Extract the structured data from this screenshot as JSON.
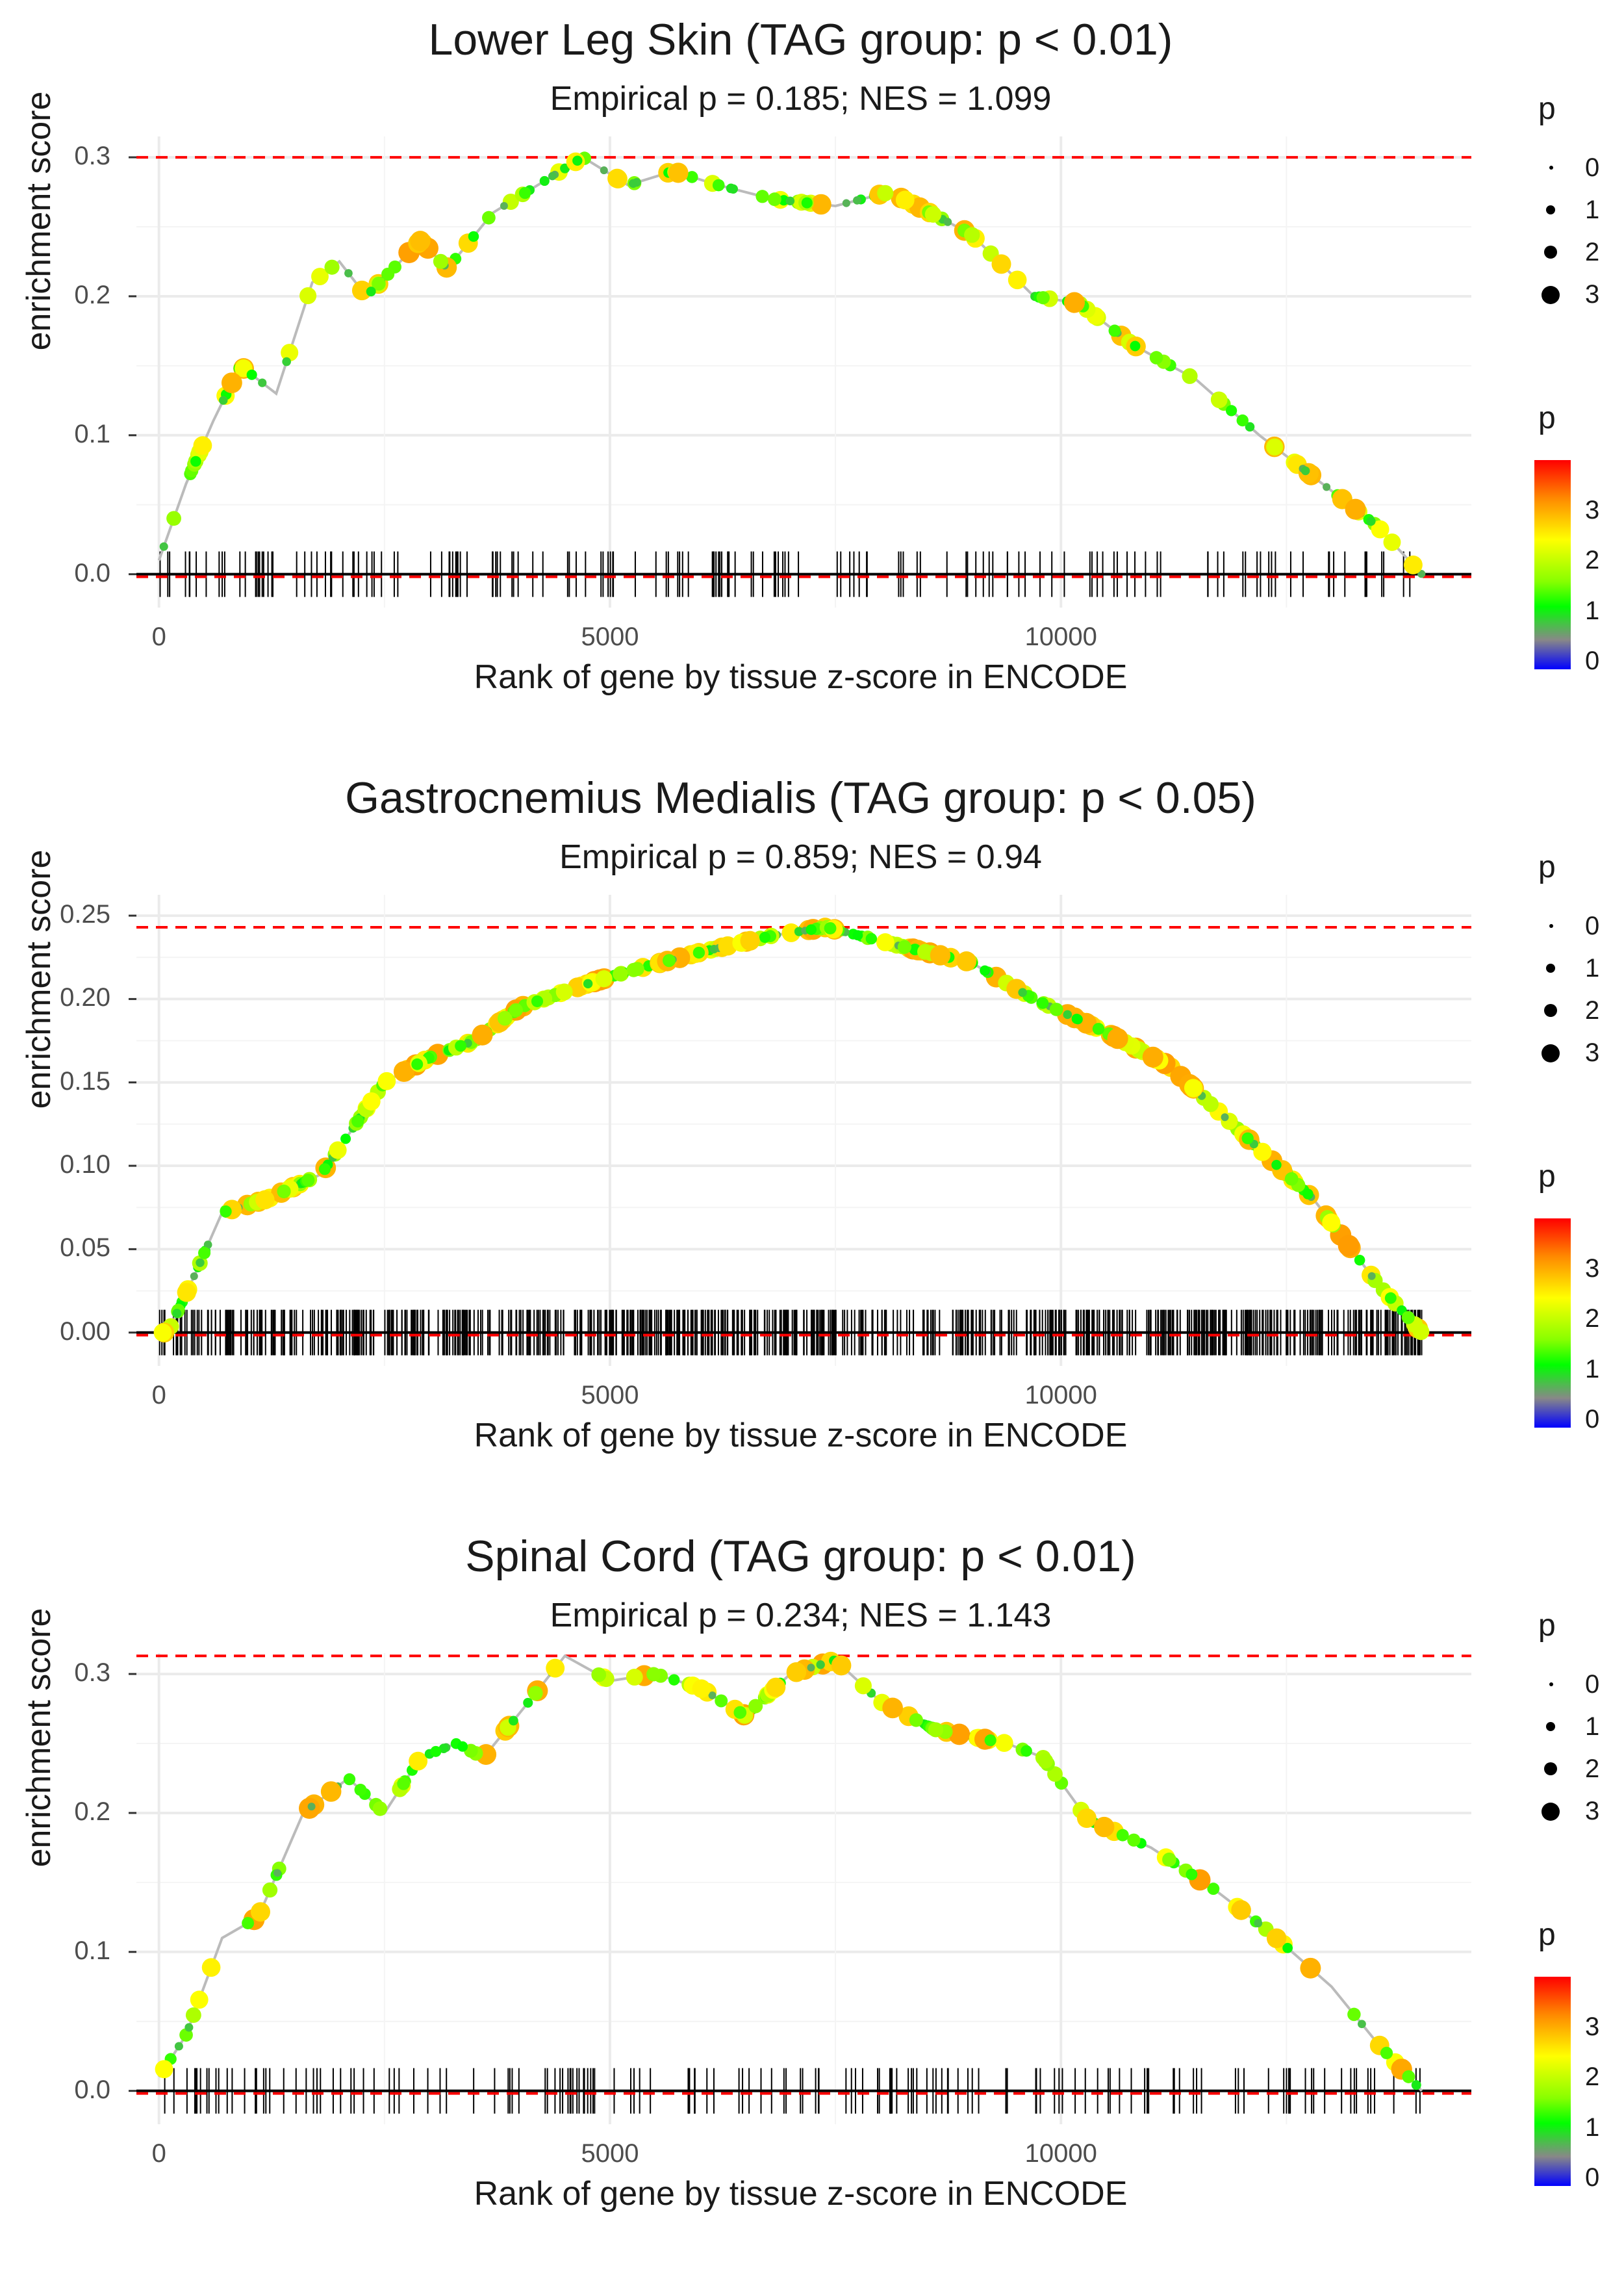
{
  "chart_data": [
    {
      "type": "line",
      "title": "Lower Leg Skin (TAG group: p < 0.01)",
      "subtitle": "Empirical p = 0.185; NES = 1.099",
      "xlabel": "Rank of gene by tissue z-score in ENCODE",
      "ylabel": "enrichment score",
      "xlim": [
        0,
        14000
      ],
      "ylim": [
        0,
        0.3
      ],
      "x_ticks": [
        "0",
        "5000",
        "10000"
      ],
      "y_ticks": [
        "0.0",
        "0.1",
        "0.2",
        "0.3"
      ],
      "max_es": 0.3,
      "min_es": 0.0,
      "curve": [
        [
          0,
          0.01
        ],
        [
          300,
          0.065
        ],
        [
          600,
          0.11
        ],
        [
          900,
          0.15
        ],
        [
          1300,
          0.13
        ],
        [
          1700,
          0.21
        ],
        [
          2000,
          0.225
        ],
        [
          2300,
          0.2
        ],
        [
          2900,
          0.24
        ],
        [
          3200,
          0.22
        ],
        [
          3700,
          0.26
        ],
        [
          4200,
          0.28
        ],
        [
          4700,
          0.3
        ],
        [
          5200,
          0.28
        ],
        [
          5700,
          0.29
        ],
        [
          6200,
          0.28
        ],
        [
          6800,
          0.27
        ],
        [
          7500,
          0.265
        ],
        [
          8100,
          0.275
        ],
        [
          9000,
          0.245
        ],
        [
          9700,
          0.2
        ],
        [
          10200,
          0.195
        ],
        [
          10800,
          0.165
        ],
        [
          11500,
          0.14
        ],
        [
          12200,
          0.1
        ],
        [
          12800,
          0.07
        ],
        [
          13500,
          0.035
        ],
        [
          14000,
          0.0
        ]
      ],
      "p_size_legend": {
        "title": "p",
        "labels": [
          "0",
          "1",
          "2",
          "3"
        ]
      },
      "p_color_legend": {
        "title": "p",
        "labels": [
          "3",
          "2",
          "1",
          "0"
        ]
      }
    },
    {
      "type": "line",
      "title": "Gastrocnemius Medialis (TAG group: p < 0.05)",
      "subtitle": "Empirical p = 0.859; NES = 0.94",
      "xlabel": "Rank of gene by tissue z-score in ENCODE",
      "ylabel": "enrichment score",
      "xlim": [
        0,
        14000
      ],
      "ylim": [
        0,
        0.25
      ],
      "x_ticks": [
        "0",
        "5000",
        "10000"
      ],
      "y_ticks": [
        "0.00",
        "0.05",
        "0.10",
        "0.15",
        "0.20",
        "0.25"
      ],
      "max_es": 0.243,
      "min_es": 0.0,
      "curve": [
        [
          100,
          0.0
        ],
        [
          400,
          0.035
        ],
        [
          700,
          0.072
        ],
        [
          1200,
          0.08
        ],
        [
          1800,
          0.095
        ],
        [
          2500,
          0.15
        ],
        [
          3000,
          0.165
        ],
        [
          3500,
          0.175
        ],
        [
          4000,
          0.195
        ],
        [
          4800,
          0.21
        ],
        [
          5300,
          0.218
        ],
        [
          6000,
          0.228
        ],
        [
          6800,
          0.238
        ],
        [
          7400,
          0.243
        ],
        [
          8200,
          0.232
        ],
        [
          9000,
          0.222
        ],
        [
          9700,
          0.2
        ],
        [
          10500,
          0.18
        ],
        [
          11200,
          0.16
        ],
        [
          12000,
          0.12
        ],
        [
          12800,
          0.08
        ],
        [
          13500,
          0.03
        ],
        [
          14000,
          0.0
        ]
      ],
      "p_size_legend": {
        "title": "p",
        "labels": [
          "0",
          "1",
          "2",
          "3"
        ]
      },
      "p_color_legend": {
        "title": "p",
        "labels": [
          "3",
          "2",
          "1",
          "0"
        ]
      }
    },
    {
      "type": "line",
      "title": "Spinal Cord (TAG group: p < 0.01)",
      "subtitle": "Empirical p = 0.234; NES = 1.143",
      "xlabel": "Rank of gene by tissue z-score in ENCODE",
      "ylabel": "enrichment score",
      "xlim": [
        0,
        14000
      ],
      "ylim": [
        0,
        0.3
      ],
      "x_ticks": [
        "0",
        "5000",
        "10000"
      ],
      "y_ticks": [
        "0.0",
        "0.1",
        "0.2",
        "0.3"
      ],
      "max_es": 0.313,
      "min_es": 0.0,
      "curve": [
        [
          0,
          0.01
        ],
        [
          300,
          0.04
        ],
        [
          700,
          0.11
        ],
        [
          1100,
          0.125
        ],
        [
          1600,
          0.2
        ],
        [
          2100,
          0.225
        ],
        [
          2500,
          0.2
        ],
        [
          2900,
          0.24
        ],
        [
          3300,
          0.25
        ],
        [
          3600,
          0.24
        ],
        [
          4100,
          0.28
        ],
        [
          4500,
          0.313
        ],
        [
          5000,
          0.295
        ],
        [
          5500,
          0.3
        ],
        [
          6000,
          0.29
        ],
        [
          6500,
          0.27
        ],
        [
          7000,
          0.3
        ],
        [
          7500,
          0.31
        ],
        [
          8000,
          0.28
        ],
        [
          8600,
          0.26
        ],
        [
          9400,
          0.25
        ],
        [
          9800,
          0.24
        ],
        [
          10300,
          0.195
        ],
        [
          11000,
          0.175
        ],
        [
          11700,
          0.145
        ],
        [
          12300,
          0.115
        ],
        [
          13000,
          0.075
        ],
        [
          13500,
          0.035
        ],
        [
          14000,
          0.0
        ]
      ],
      "p_size_legend": {
        "title": "p",
        "labels": [
          "0",
          "1",
          "2",
          "3"
        ]
      },
      "p_color_legend": {
        "title": "p",
        "labels": [
          "3",
          "2",
          "1",
          "0"
        ]
      }
    }
  ]
}
